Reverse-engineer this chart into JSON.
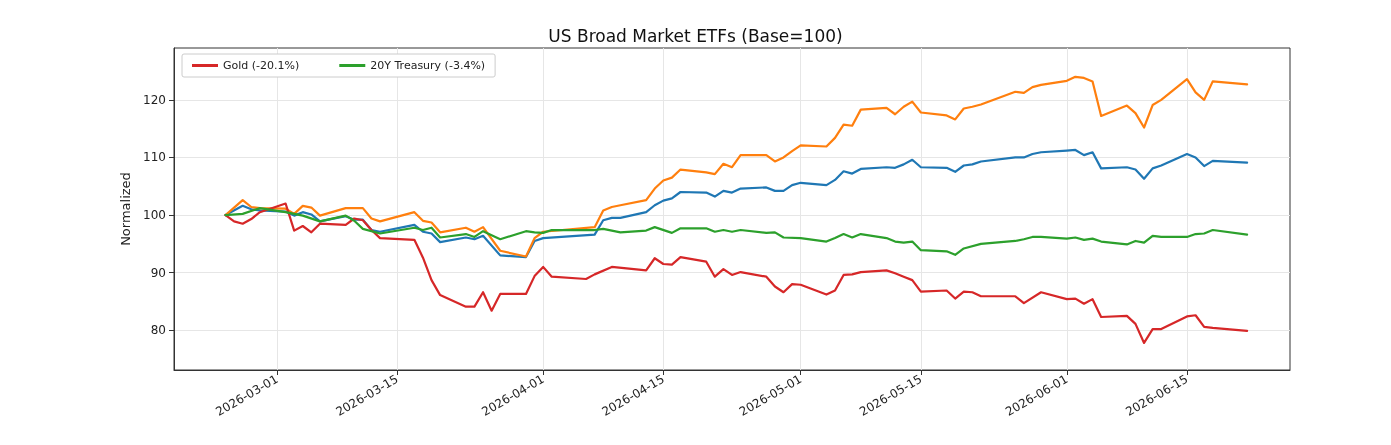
{
  "chart_data": {
    "type": "line",
    "title": "US Broad Market ETFs (Base=100)",
    "ylabel": "Normalized",
    "xlim": [
      "2026-02-17",
      "2026-06-27"
    ],
    "xticks": [
      "2026-03-01",
      "2026-03-15",
      "2026-04-01",
      "2026-04-15",
      "2026-05-01",
      "2026-05-15",
      "2026-06-01",
      "2026-06-15"
    ],
    "ylim": [
      73.1,
      129
    ],
    "yticks": [
      80,
      90,
      100,
      110,
      120
    ],
    "grid": true,
    "legend": "top left",
    "marker": "none",
    "line_style": "solid",
    "series": [
      {
        "color": "#1f77b4",
        "x": [
          "2026-02-23",
          "2026-02-25",
          "2026-02-26",
          "2026-02-27",
          "2026-03-02",
          "2026-03-03",
          "2026-03-04",
          "2026-03-05",
          "2026-03-06",
          "2026-03-09",
          "2026-03-10",
          "2026-03-11",
          "2026-03-12",
          "2026-03-13",
          "2026-03-17",
          "2026-03-18",
          "2026-03-19",
          "2026-03-20",
          "2026-03-23",
          "2026-03-24",
          "2026-03-25",
          "2026-03-27",
          "2026-03-30",
          "2026-03-31",
          "2026-04-01",
          "2026-04-07",
          "2026-04-08",
          "2026-04-09",
          "2026-04-10",
          "2026-04-13",
          "2026-04-14",
          "2026-04-15",
          "2026-04-16",
          "2026-04-17",
          "2026-04-20",
          "2026-04-21",
          "2026-04-22",
          "2026-04-23",
          "2026-04-24",
          "2026-04-27",
          "2026-04-28",
          "2026-04-29",
          "2026-04-30",
          "2026-05-01",
          "2026-05-04",
          "2026-05-05",
          "2026-05-06",
          "2026-05-07",
          "2026-05-08",
          "2026-05-11",
          "2026-05-12",
          "2026-05-13",
          "2026-05-14",
          "2026-05-15",
          "2026-05-18",
          "2026-05-19",
          "2026-05-20",
          "2026-05-21",
          "2026-05-22",
          "2026-05-26",
          "2026-05-27",
          "2026-05-28",
          "2026-05-29",
          "2026-06-01",
          "2026-06-02",
          "2026-06-03",
          "2026-06-04",
          "2026-06-05",
          "2026-06-08",
          "2026-06-09",
          "2026-06-10",
          "2026-06-11",
          "2026-06-12",
          "2026-06-15",
          "2026-06-16",
          "2026-06-17",
          "2026-06-18",
          "2026-06-22"
        ],
        "values": [
          100,
          101.6,
          101,
          100.8,
          100.6,
          99.9,
          100.5,
          100.1,
          98.9,
          99.8,
          99.2,
          99.2,
          97.4,
          97.1,
          98.3,
          97.1,
          96.8,
          95.3,
          96.1,
          95.8,
          96.4,
          93,
          92.7,
          95.5,
          96,
          96.6,
          99.1,
          99.5,
          99.5,
          100.5,
          101.7,
          102.5,
          102.9,
          104,
          103.9,
          103.2,
          104.2,
          103.9,
          104.6,
          104.8,
          104.2,
          104.2,
          105.2,
          105.6,
          105.2,
          106.1,
          107.6,
          107.2,
          108,
          108.3,
          108.2,
          108.8,
          109.6,
          108.3,
          108.2,
          107.5,
          108.6,
          108.8,
          109.3,
          110,
          110,
          110.6,
          110.9,
          111.2,
          111.3,
          110.4,
          110.9,
          108.1,
          108.3,
          107.9,
          106.3,
          108.1,
          108.6,
          110.6,
          110,
          108.5,
          109.4,
          109.1
        ]
      },
      {
        "color": "#ff7f0e",
        "x": [
          "2026-02-23",
          "2026-02-25",
          "2026-02-26",
          "2026-02-27",
          "2026-03-02",
          "2026-03-03",
          "2026-03-04",
          "2026-03-05",
          "2026-03-06",
          "2026-03-09",
          "2026-03-10",
          "2026-03-11",
          "2026-03-12",
          "2026-03-13",
          "2026-03-17",
          "2026-03-18",
          "2026-03-19",
          "2026-03-20",
          "2026-03-23",
          "2026-03-24",
          "2026-03-25",
          "2026-03-27",
          "2026-03-30",
          "2026-03-31",
          "2026-04-01",
          "2026-04-07",
          "2026-04-08",
          "2026-04-09",
          "2026-04-10",
          "2026-04-13",
          "2026-04-14",
          "2026-04-15",
          "2026-04-16",
          "2026-04-17",
          "2026-04-20",
          "2026-04-21",
          "2026-04-22",
          "2026-04-23",
          "2026-04-24",
          "2026-04-27",
          "2026-04-28",
          "2026-04-29",
          "2026-04-30",
          "2026-05-01",
          "2026-05-04",
          "2026-05-05",
          "2026-05-06",
          "2026-05-07",
          "2026-05-08",
          "2026-05-11",
          "2026-05-12",
          "2026-05-13",
          "2026-05-14",
          "2026-05-15",
          "2026-05-18",
          "2026-05-19",
          "2026-05-20",
          "2026-05-21",
          "2026-05-22",
          "2026-05-26",
          "2026-05-27",
          "2026-05-28",
          "2026-05-29",
          "2026-06-01",
          "2026-06-02",
          "2026-06-03",
          "2026-06-04",
          "2026-06-05",
          "2026-06-08",
          "2026-06-09",
          "2026-06-10",
          "2026-06-11",
          "2026-06-12",
          "2026-06-15",
          "2026-06-16",
          "2026-06-17",
          "2026-06-18",
          "2026-06-22"
        ],
        "values": [
          100,
          102.6,
          101.4,
          101.2,
          101.1,
          100.2,
          101.6,
          101.3,
          99.9,
          101.2,
          101.2,
          101.2,
          99.4,
          98.9,
          100.5,
          99,
          98.7,
          97,
          97.8,
          97.1,
          97.9,
          93.8,
          92.8,
          96,
          97.1,
          97.9,
          100.8,
          101.4,
          101.7,
          102.6,
          104.6,
          106,
          106.5,
          107.9,
          107.4,
          107.1,
          108.9,
          108.3,
          110.4,
          110.4,
          109.3,
          110,
          111.1,
          112.1,
          111.9,
          113.4,
          115.7,
          115.5,
          118.3,
          118.6,
          117.5,
          118.8,
          119.7,
          117.8,
          117.3,
          116.6,
          118.5,
          118.8,
          119.2,
          121.4,
          121.2,
          122.2,
          122.6,
          123.3,
          124,
          123.8,
          123.2,
          117.2,
          119,
          117.7,
          115.2,
          119.1,
          120,
          123.6,
          121.3,
          120,
          123.2,
          122.7
        ]
      },
      {
        "name": "Gold (-20.1%)",
        "color": "#d62728",
        "x": [
          "2026-02-23",
          "2026-02-24",
          "2026-02-25",
          "2026-02-26",
          "2026-02-27",
          "2026-03-02",
          "2026-03-03",
          "2026-03-04",
          "2026-03-05",
          "2026-03-06",
          "2026-03-09",
          "2026-03-10",
          "2026-03-11",
          "2026-03-12",
          "2026-03-13",
          "2026-03-17",
          "2026-03-18",
          "2026-03-19",
          "2026-03-20",
          "2026-03-23",
          "2026-03-24",
          "2026-03-25",
          "2026-03-26",
          "2026-03-27",
          "2026-03-30",
          "2026-03-31",
          "2026-04-01",
          "2026-04-02",
          "2026-04-06",
          "2026-04-07",
          "2026-04-09",
          "2026-04-13",
          "2026-04-14",
          "2026-04-15",
          "2026-04-16",
          "2026-04-17",
          "2026-04-20",
          "2026-04-21",
          "2026-04-22",
          "2026-04-23",
          "2026-04-24",
          "2026-04-27",
          "2026-04-28",
          "2026-04-29",
          "2026-04-30",
          "2026-05-01",
          "2026-05-04",
          "2026-05-05",
          "2026-05-06",
          "2026-05-07",
          "2026-05-08",
          "2026-05-11",
          "2026-05-12",
          "2026-05-13",
          "2026-05-14",
          "2026-05-15",
          "2026-05-18",
          "2026-05-19",
          "2026-05-20",
          "2026-05-21",
          "2026-05-22",
          "2026-05-26",
          "2026-05-27",
          "2026-05-29",
          "2026-06-01",
          "2026-06-02",
          "2026-06-03",
          "2026-06-04",
          "2026-06-05",
          "2026-06-08",
          "2026-06-09",
          "2026-06-10",
          "2026-06-11",
          "2026-06-12",
          "2026-06-15",
          "2026-06-16",
          "2026-06-17",
          "2026-06-18",
          "2026-06-22"
        ],
        "values": [
          100,
          98.9,
          98.5,
          99.3,
          100.5,
          102,
          97.3,
          98.1,
          97,
          98.5,
          98.3,
          99.4,
          99.1,
          97.4,
          96,
          95.7,
          92.6,
          88.7,
          86.1,
          84.1,
          84.1,
          86.6,
          83.4,
          86.3,
          86.3,
          89.4,
          91,
          89.3,
          88.9,
          89.7,
          91,
          90.4,
          92.5,
          91.5,
          91.4,
          92.7,
          91.9,
          89.3,
          90.6,
          89.6,
          90.1,
          89.3,
          87.6,
          86.6,
          88,
          87.9,
          86.2,
          86.9,
          89.6,
          89.7,
          90.1,
          90.4,
          89.9,
          89.3,
          88.7,
          86.7,
          86.9,
          85.5,
          86.7,
          86.6,
          85.9,
          85.9,
          84.7,
          86.6,
          85.4,
          85.5,
          84.6,
          85.4,
          82.3,
          82.5,
          81.1,
          77.8,
          80.2,
          80.2,
          82.4,
          82.6,
          80.6,
          80.4,
          79.9
        ]
      },
      {
        "name": "20Y Treasury (-3.4%)",
        "color": "#2ca02c",
        "x": [
          "2026-02-23",
          "2026-02-25",
          "2026-02-27",
          "2026-03-02",
          "2026-03-04",
          "2026-03-06",
          "2026-03-09",
          "2026-03-10",
          "2026-03-11",
          "2026-03-13",
          "2026-03-17",
          "2026-03-18",
          "2026-03-19",
          "2026-03-20",
          "2026-03-23",
          "2026-03-24",
          "2026-03-25",
          "2026-03-27",
          "2026-03-30",
          "2026-03-31",
          "2026-04-01",
          "2026-04-02",
          "2026-04-07",
          "2026-04-08",
          "2026-04-10",
          "2026-04-13",
          "2026-04-14",
          "2026-04-16",
          "2026-04-17",
          "2026-04-20",
          "2026-04-21",
          "2026-04-22",
          "2026-04-23",
          "2026-04-24",
          "2026-04-27",
          "2026-04-28",
          "2026-04-29",
          "2026-05-01",
          "2026-05-04",
          "2026-05-05",
          "2026-05-06",
          "2026-05-07",
          "2026-05-08",
          "2026-05-11",
          "2026-05-12",
          "2026-05-13",
          "2026-05-14",
          "2026-05-15",
          "2026-05-18",
          "2026-05-19",
          "2026-05-20",
          "2026-05-22",
          "2026-05-26",
          "2026-05-27",
          "2026-05-28",
          "2026-05-29",
          "2026-06-01",
          "2026-06-02",
          "2026-06-03",
          "2026-06-04",
          "2026-06-05",
          "2026-06-08",
          "2026-06-09",
          "2026-06-10",
          "2026-06-11",
          "2026-06-12",
          "2026-06-15",
          "2026-06-16",
          "2026-06-17",
          "2026-06-18",
          "2026-06-22"
        ],
        "values": [
          100,
          100.2,
          101.2,
          100.5,
          99.9,
          98.9,
          99.9,
          99,
          97.6,
          96.8,
          97.8,
          97.4,
          97.8,
          96.1,
          96.7,
          96.2,
          97.2,
          95.8,
          97.2,
          97,
          96.9,
          97.4,
          97.4,
          97.6,
          97,
          97.3,
          97.9,
          96.9,
          97.7,
          97.7,
          97.1,
          97.4,
          97.1,
          97.4,
          96.9,
          97,
          96.1,
          96,
          95.4,
          96,
          96.7,
          96.1,
          96.7,
          96,
          95.4,
          95.2,
          95.4,
          93.9,
          93.7,
          93.1,
          94.2,
          95,
          95.5,
          95.8,
          96.2,
          96.2,
          95.9,
          96.1,
          95.7,
          95.9,
          95.4,
          94.9,
          95.5,
          95.2,
          96.4,
          96.2,
          96.2,
          96.7,
          96.8,
          97.4,
          96.6
        ]
      }
    ]
  }
}
